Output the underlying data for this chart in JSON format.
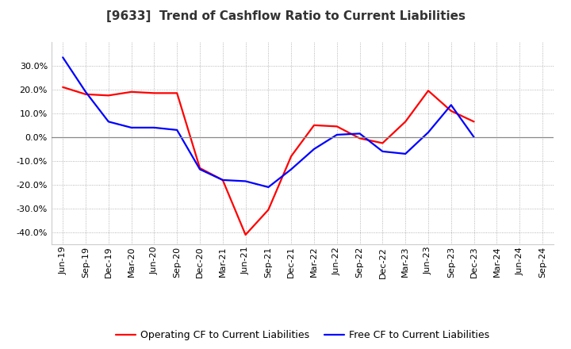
{
  "title": "[9633]  Trend of Cashflow Ratio to Current Liabilities",
  "x_labels": [
    "Jun-19",
    "Sep-19",
    "Dec-19",
    "Mar-20",
    "Jun-20",
    "Sep-20",
    "Dec-20",
    "Mar-21",
    "Jun-21",
    "Sep-21",
    "Dec-21",
    "Mar-22",
    "Jun-22",
    "Sep-22",
    "Dec-22",
    "Mar-23",
    "Jun-23",
    "Sep-23",
    "Dec-23",
    "Mar-24",
    "Jun-24",
    "Sep-24"
  ],
  "operating_cf": [
    0.21,
    0.18,
    0.175,
    0.19,
    0.185,
    0.185,
    -0.13,
    -0.18,
    -0.41,
    -0.305,
    -0.08,
    0.05,
    0.045,
    -0.005,
    -0.025,
    0.065,
    0.195,
    0.11,
    0.065,
    null,
    null,
    null
  ],
  "free_cf": [
    0.335,
    0.19,
    0.065,
    0.04,
    0.04,
    0.03,
    -0.135,
    -0.18,
    -0.185,
    -0.21,
    -0.135,
    -0.05,
    0.01,
    0.015,
    -0.06,
    -0.07,
    0.02,
    0.135,
    0.0,
    null,
    null,
    null
  ],
  "ylim": [
    -0.45,
    0.4
  ],
  "yticks": [
    -0.4,
    -0.3,
    -0.2,
    -0.1,
    0.0,
    0.1,
    0.2,
    0.3
  ],
  "operating_color": "#ff0000",
  "free_color": "#0000ff",
  "background_color": "#ffffff",
  "grid_color": "#999999",
  "title_fontsize": 11,
  "legend_fontsize": 9,
  "tick_fontsize": 8
}
